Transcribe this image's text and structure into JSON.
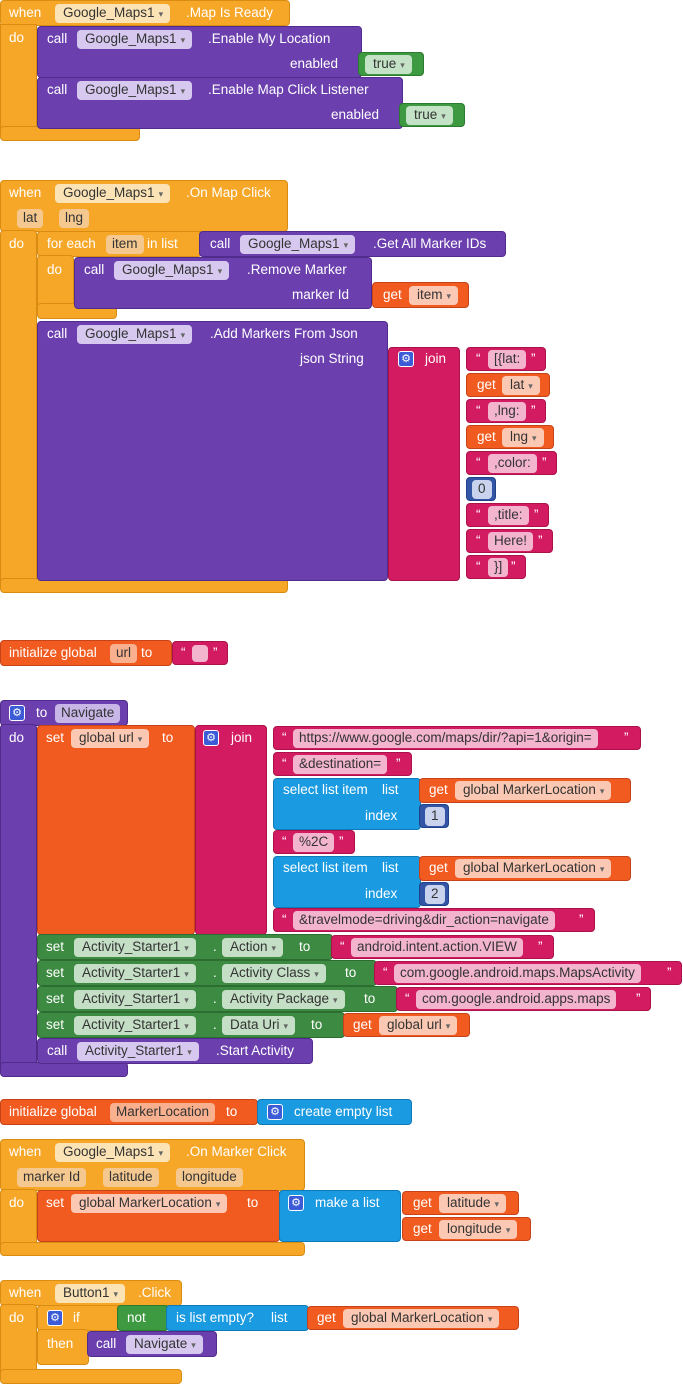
{
  "kw": {
    "when": "when",
    "do": "do",
    "call": "call",
    "enabled": "enabled",
    "get": "get",
    "set": "set",
    "to": "to",
    "for_each": "for each",
    "in_list": "in list",
    "marker_id_arg": "marker Id",
    "json_string": "json String",
    "join": "join",
    "initialize_global": "initialize global",
    "index": "index",
    "list": "list",
    "select_list_item": "select list item",
    "if": "if",
    "then": "then",
    "not": "not",
    "is_list_empty": "is list empty?",
    "make_a_list": "make a list",
    "create_empty_list": "create empty list",
    "dot": ".",
    "true": "true",
    "ldq": "“",
    "rdq": "”",
    "arrow": "▾",
    "gear": "⚙"
  },
  "block1": {
    "component": "Google_Maps1",
    "event": ".Map Is Ready",
    "call1_method": ".Enable My Location",
    "call2_method": ".Enable Map Click Listener"
  },
  "block2": {
    "component": "Google_Maps1",
    "event": ".On Map Click",
    "params": [
      "lat",
      "lng"
    ],
    "item_var": "item",
    "get_ids": ".Get All Marker IDs",
    "remove": ".Remove Marker",
    "add": ".Add Markers From Json",
    "json_parts": [
      "[{lat:",
      "lat",
      ",lng:",
      "lng",
      ",color:",
      "0",
      ",title:",
      "Here!",
      "}]"
    ]
  },
  "block3": {
    "var": "url",
    "value": " "
  },
  "block4": {
    "proc": "Navigate",
    "var": "global url",
    "url_start": "https://www.google.com/maps/dir/?api=1&origin=",
    "dest": "&destination=",
    "marker_loc": "global MarkerLocation",
    "idx1": "1",
    "sep": "%2C",
    "idx2": "2",
    "travel": "&travelmode=driving&dir_action=navigate",
    "component": "Activity_Starter1",
    "prop_action": "Action",
    "val_action": "android.intent.action.VIEW",
    "prop_class": "Activity Class",
    "val_class": "com.google.android.maps.MapsActivity",
    "prop_pkg": "Activity Package",
    "val_pkg": "com.google.android.apps.maps",
    "prop_uri": "Data Uri",
    "uri_get": "global url",
    "start": ".Start Activity"
  },
  "block5": {
    "var": "MarkerLocation"
  },
  "block6": {
    "component": "Google_Maps1",
    "event": ".On Marker Click",
    "params": [
      "marker Id",
      "latitude",
      "longitude"
    ],
    "set_var": "global MarkerLocation",
    "get1": "latitude",
    "get2": "longitude"
  },
  "block7": {
    "component": "Button1",
    "event": ".Click",
    "check": "global MarkerLocation",
    "proc": "Navigate"
  },
  "colors": {
    "event": "#f7a728",
    "component": "#6b3fae",
    "text": "#d21b60",
    "variable": "#f25b20",
    "list": "#1a9ae0",
    "logic": "#3d9a41",
    "math": "#3355a5",
    "setter": "#3d8b42"
  }
}
